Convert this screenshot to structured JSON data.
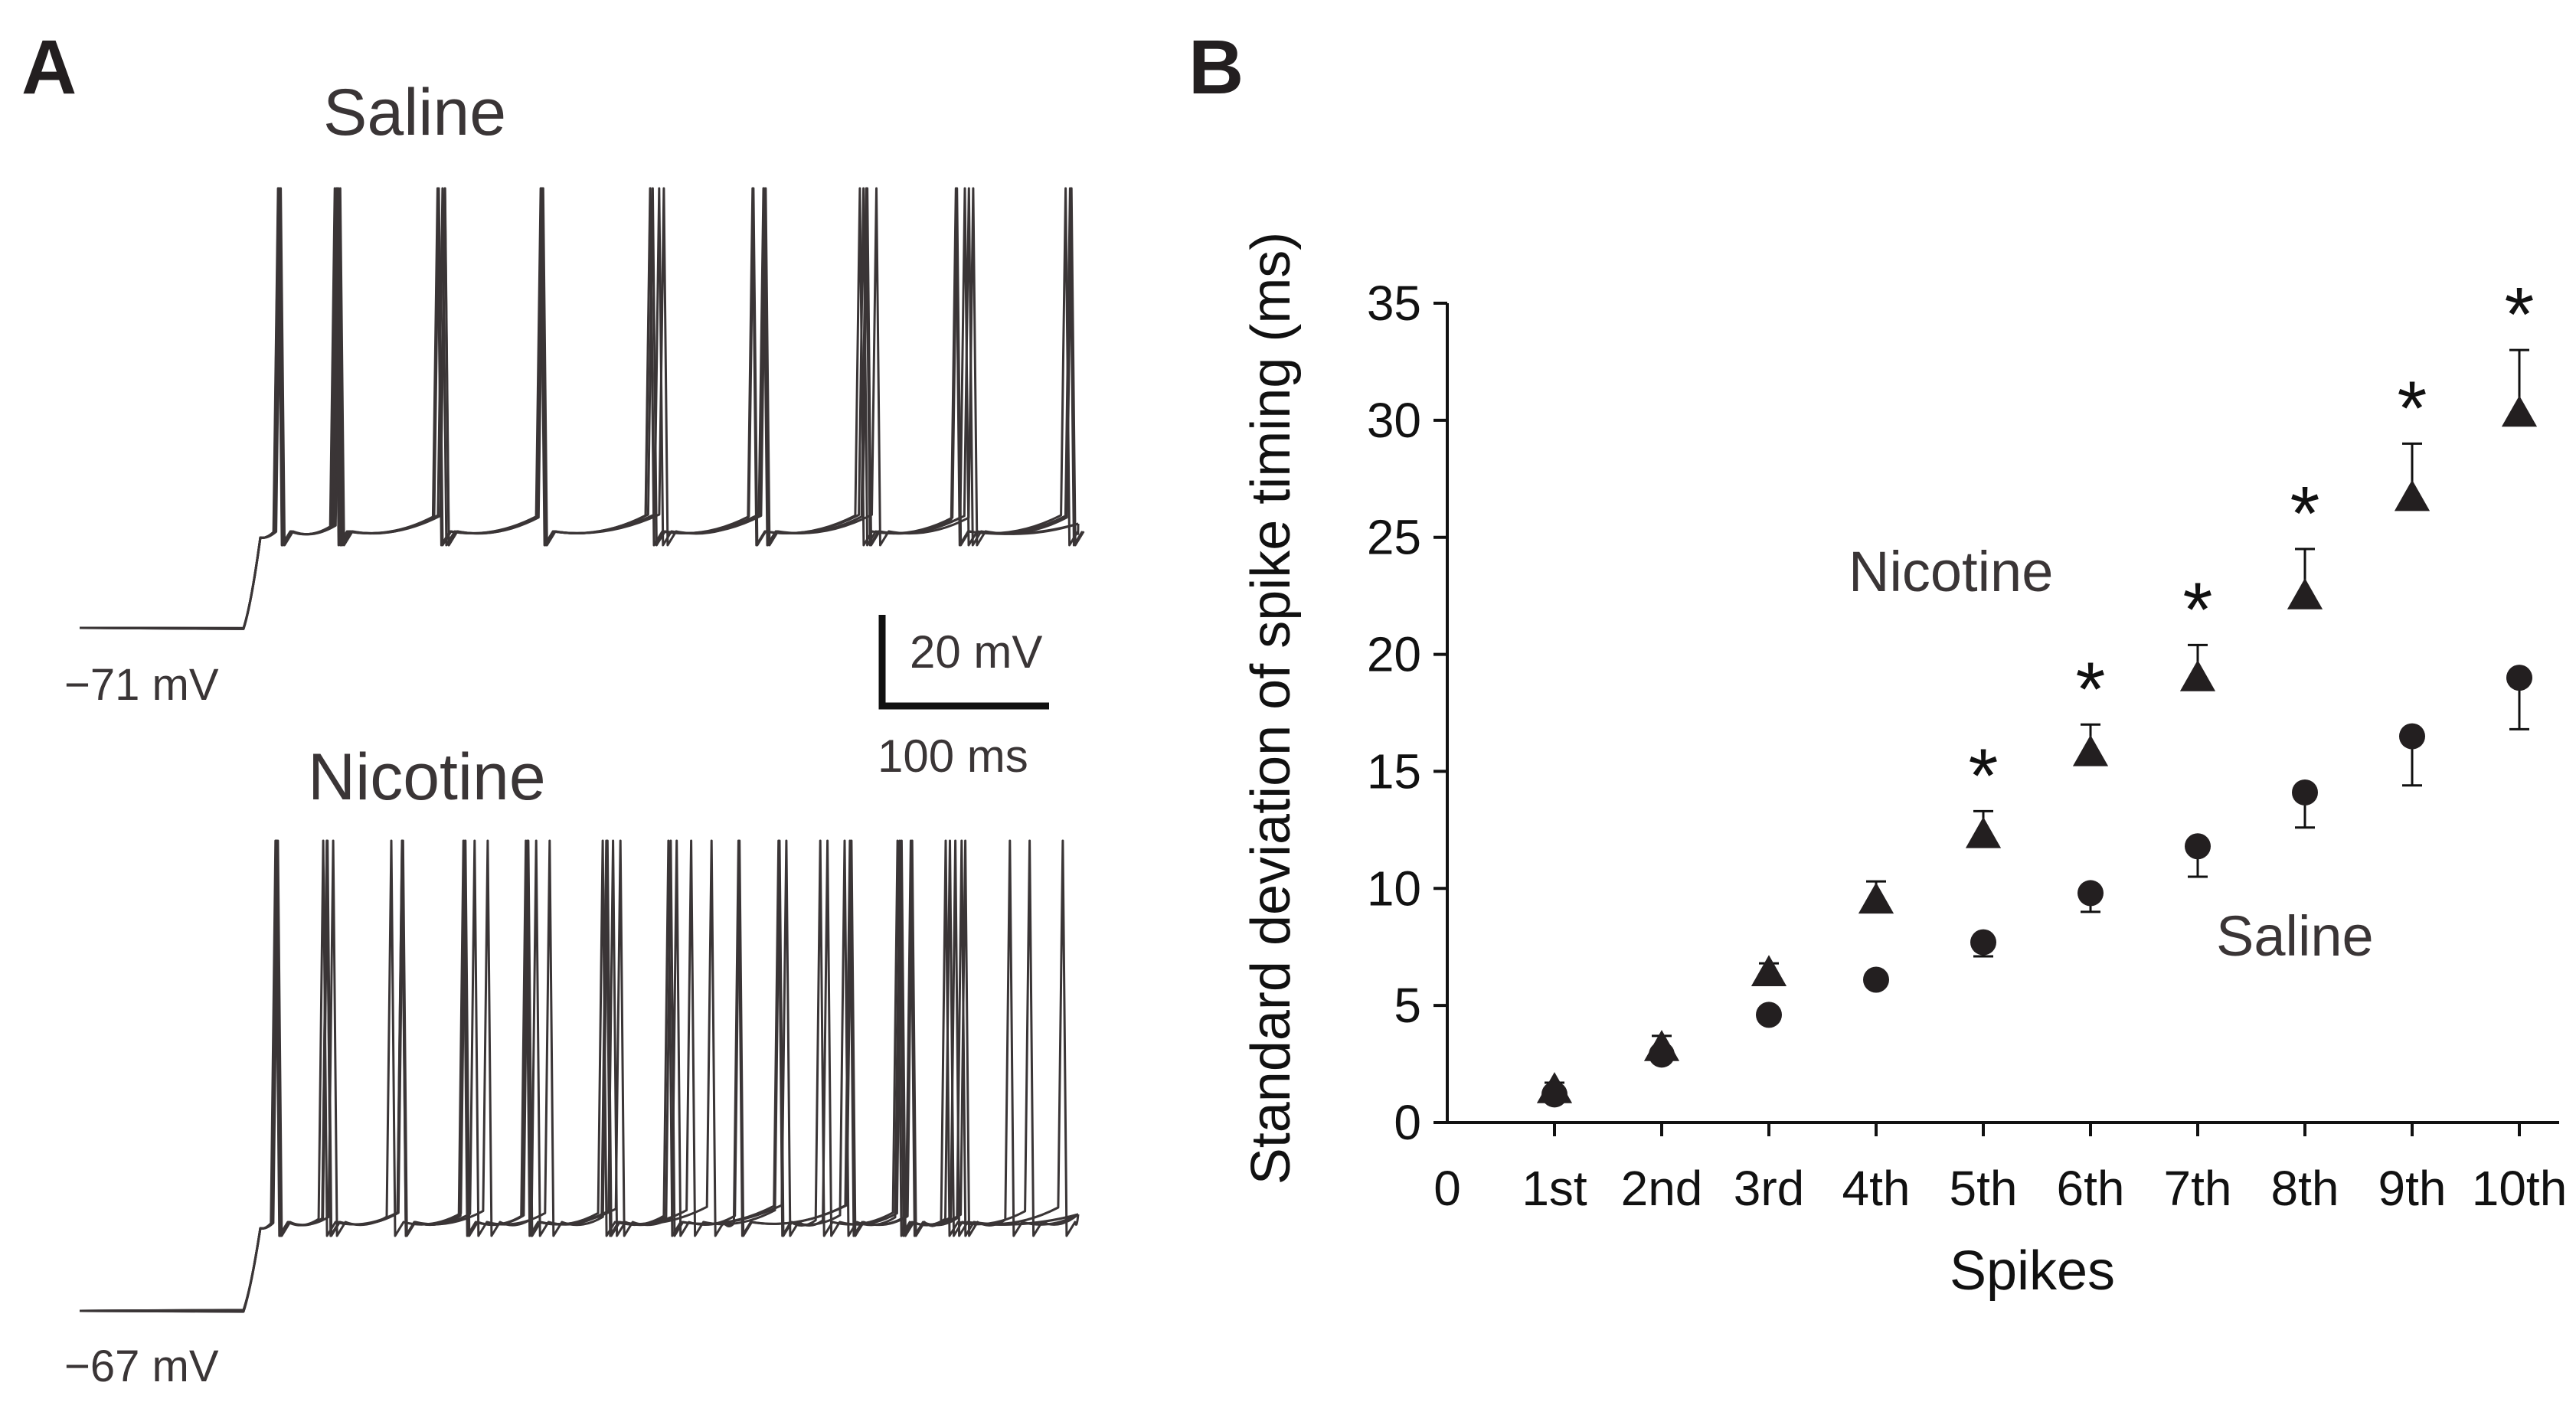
{
  "panel_a": {
    "letter": "A",
    "saline": {
      "title": "Saline",
      "rest_label": "−71 mV"
    },
    "nicotine": {
      "title": "Nicotine",
      "rest_label": "−67 mV"
    },
    "scale_bar": {
      "voltage_label": "20 mV",
      "time_label": "100 ms"
    }
  },
  "panel_b": {
    "letter": "B"
  },
  "colors": {
    "ink": "#231f20",
    "trace": "#3a3536"
  },
  "chart_data": {
    "type": "scatter",
    "title": "",
    "xlabel": "Spikes",
    "ylabel": "Standard deviation of spike timing (ms)",
    "x_origin_label": "0",
    "categories": [
      "1st",
      "2nd",
      "3rd",
      "4th",
      "5th",
      "6th",
      "7th",
      "8th",
      "9th",
      "10th"
    ],
    "ylim": [
      0,
      35
    ],
    "yticks": [
      0,
      5,
      10,
      15,
      20,
      25,
      30,
      35
    ],
    "series": [
      {
        "name": "Nicotine",
        "marker": "triangle",
        "values": [
          1.4,
          3.2,
          6.4,
          9.5,
          12.3,
          15.8,
          19.0,
          22.5,
          26.7,
          30.3
        ],
        "errors": [
          0.3,
          0.5,
          0.4,
          0.8,
          1.0,
          1.2,
          1.4,
          2.0,
          2.3,
          2.7
        ],
        "error_direction": "up"
      },
      {
        "name": "Saline",
        "marker": "circle",
        "values": [
          1.2,
          2.9,
          4.6,
          6.1,
          7.7,
          9.8,
          11.8,
          14.1,
          16.5,
          19.0
        ],
        "errors": [
          0.2,
          0.3,
          0.3,
          0.3,
          0.6,
          0.8,
          1.3,
          1.5,
          2.1,
          2.2
        ],
        "error_direction": "down"
      }
    ],
    "significance_marker": "*",
    "significant_categories": [
      "5th",
      "6th",
      "7th",
      "8th",
      "9th",
      "10th"
    ]
  }
}
